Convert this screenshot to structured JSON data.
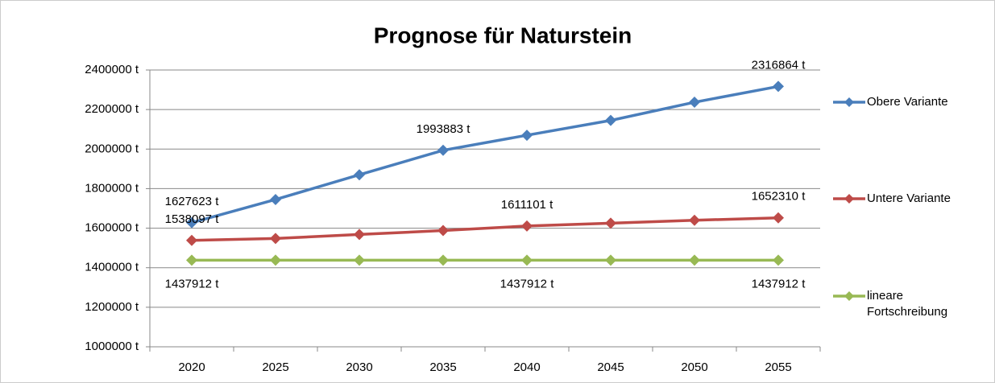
{
  "chart_data": {
    "type": "line",
    "title": "Prognose für Naturstein",
    "categories": [
      "2020",
      "2025",
      "2030",
      "2035",
      "2040",
      "2045",
      "2050",
      "2055"
    ],
    "series": [
      {
        "name": "Obere Variante",
        "color": "#4a7ebb",
        "values": [
          1627623,
          1745000,
          1870000,
          1993883,
          2070000,
          2145000,
          2237000,
          2316864
        ],
        "value_labels": [
          "1627623 t",
          null,
          null,
          "1993883 t",
          null,
          null,
          null,
          "2316864 t"
        ]
      },
      {
        "name": "Untere Variante",
        "color": "#be4b48",
        "values": [
          1538097,
          1548000,
          1568000,
          1588000,
          1611101,
          1625000,
          1640000,
          1652310
        ],
        "value_labels": [
          "1538097 t",
          null,
          null,
          null,
          "1611101 t",
          null,
          null,
          "1652310 t"
        ]
      },
      {
        "name": "lineare Fortschreibung",
        "color": "#98b954",
        "values": [
          1437912,
          1437912,
          1437912,
          1437912,
          1437912,
          1437912,
          1437912,
          1437912
        ],
        "value_labels": [
          "1437912 t",
          null,
          null,
          null,
          "1437912 t",
          null,
          null,
          "1437912 t"
        ]
      }
    ],
    "ylim": [
      1000000,
      2400000
    ],
    "yticks": [
      {
        "value": 1000000,
        "label": "1000000 t"
      },
      {
        "value": 1200000,
        "label": "1200000 t"
      },
      {
        "value": 1400000,
        "label": "1400000 t"
      },
      {
        "value": 1600000,
        "label": "1600000 t"
      },
      {
        "value": 1800000,
        "label": "1800000 t"
      },
      {
        "value": 2000000,
        "label": "2000000 t"
      },
      {
        "value": 2200000,
        "label": "2200000 t"
      },
      {
        "value": 2400000,
        "label": "2400000 t"
      }
    ],
    "grid": true,
    "legend": "right"
  }
}
